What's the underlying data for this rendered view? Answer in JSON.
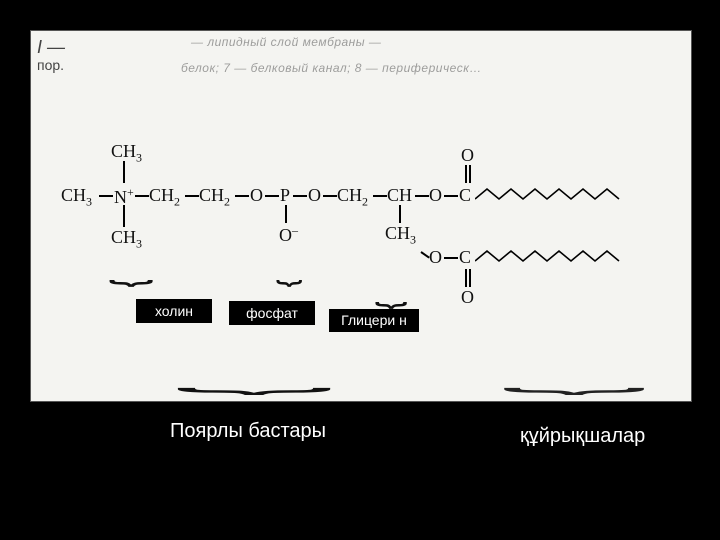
{
  "page": {
    "bg_color": "#000000",
    "paper_color": "#f4f4f1"
  },
  "faint_header": {
    "line1": "— липидный слой мембраны —",
    "line2": "белок; 7 — белковый канал; 8 — периферическ…",
    "margin_i": "I —",
    "margin_word": "пор."
  },
  "formula": {
    "ch3_top": "CH",
    "ch3_left": "CH",
    "n_plus": "N",
    "ch2a": "CH",
    "ch2b": "CH",
    "o1": "O",
    "p": "P",
    "o2": "O",
    "ch2c": "CH",
    "ch_mid": "CH",
    "o3": "O",
    "c1": "C",
    "ch3_bottom_left": "CH",
    "o_minus": "O",
    "ch3_mid_below": "CH",
    "o4": "O",
    "c2": "C",
    "o5_top": "O",
    "o6_bottom": "O",
    "subscript3": "3",
    "subscript2": "2",
    "plus": "+",
    "minus": "–"
  },
  "zigzag": {
    "stroke": "#000000",
    "stroke_width": 1.6,
    "segments": 12,
    "seg_w": 12,
    "amp": 10
  },
  "tags": {
    "choline": "холин",
    "phosphate": "фосфат",
    "glycerin": "Глицери\nн"
  },
  "captions": {
    "polar_heads": "Поярлы бастары",
    "tails": "құйрықшалар"
  },
  "colors": {
    "text_dark": "#111111",
    "label_bg": "#000000",
    "label_fg": "#ffffff",
    "caption_fg": "#ffffff"
  }
}
